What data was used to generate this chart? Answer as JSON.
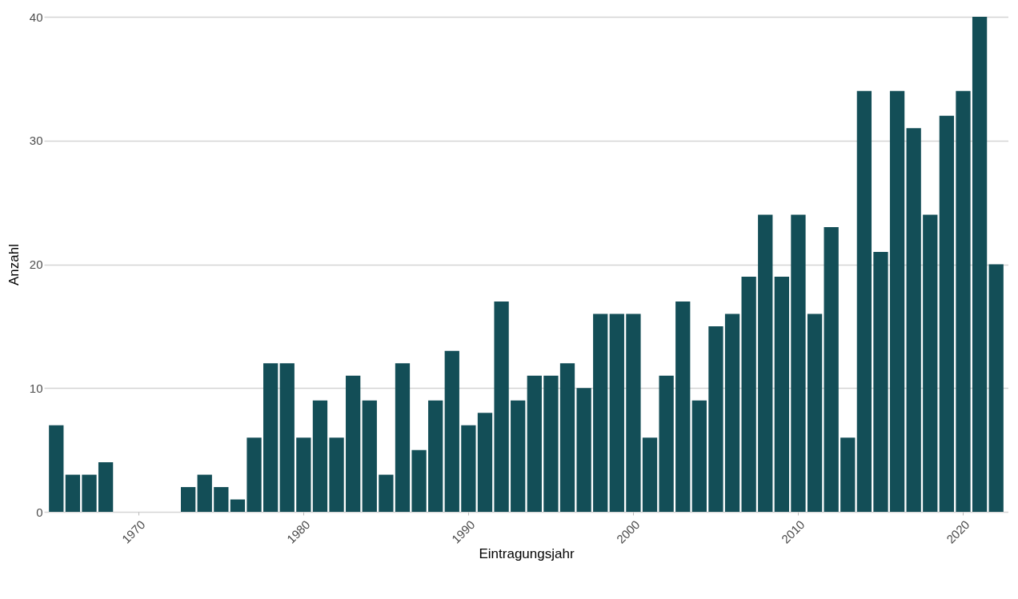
{
  "chart_data": {
    "type": "bar",
    "xlabel": "Eintragungsjahr",
    "ylabel": "Anzahl",
    "x": [
      1965,
      1966,
      1967,
      1968,
      1969,
      1970,
      1971,
      1972,
      1973,
      1974,
      1975,
      1976,
      1977,
      1978,
      1979,
      1980,
      1981,
      1982,
      1983,
      1984,
      1985,
      1986,
      1987,
      1988,
      1989,
      1990,
      1991,
      1992,
      1993,
      1994,
      1995,
      1996,
      1997,
      1998,
      1999,
      2000,
      2001,
      2002,
      2003,
      2004,
      2005,
      2006,
      2007,
      2008,
      2009,
      2010,
      2011,
      2012,
      2013,
      2014,
      2015,
      2016,
      2017,
      2018,
      2019,
      2020,
      2021,
      2022
    ],
    "values": [
      7,
      3,
      3,
      4,
      0,
      0,
      0,
      0,
      2,
      3,
      2,
      1,
      6,
      12,
      12,
      6,
      9,
      6,
      11,
      9,
      3,
      12,
      5,
      9,
      13,
      7,
      8,
      17,
      9,
      11,
      11,
      12,
      10,
      16,
      16,
      16,
      6,
      11,
      17,
      9,
      15,
      16,
      19,
      24,
      19,
      24,
      16,
      23,
      6,
      34,
      21,
      34,
      31,
      24,
      32,
      34,
      40,
      20
    ],
    "color": "#134e57",
    "xlim": [
      1964.5,
      2022.5
    ],
    "xticks": [
      1970,
      1980,
      1990,
      2000,
      2010,
      2020
    ],
    "ylim": [
      0,
      40
    ],
    "yticks": [
      0,
      10,
      20,
      30,
      40
    ],
    "grid": "y"
  }
}
